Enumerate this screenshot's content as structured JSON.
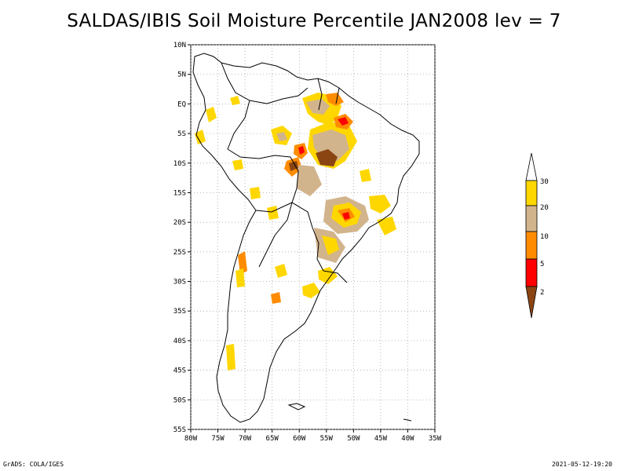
{
  "title": "SALDAS/IBIS Soil Moisture Percentile JAN2008 lev = 7",
  "map": {
    "region": "South America",
    "lat_labels": [
      "10N",
      "5N",
      "EQ",
      "5S",
      "10S",
      "15S",
      "20S",
      "25S",
      "30S",
      "35S",
      "40S",
      "45S",
      "50S",
      "55S"
    ],
    "lon_labels": [
      "80W",
      "75W",
      "70W",
      "65W",
      "60W",
      "55W",
      "50W",
      "45W",
      "40W",
      "35W"
    ],
    "lat_range": [
      10,
      -55
    ],
    "lon_range": [
      -80,
      -35
    ]
  },
  "colorbar": {
    "labels": [
      "30",
      "20",
      "10",
      "5",
      "2"
    ],
    "colors": {
      "above_30": "#ffffff",
      "p20_30": "#ffd700",
      "p10_20": "#d2b48c",
      "p5_10": "#ff8c00",
      "p2_5": "#ff0000",
      "below_2": "#8b4513"
    }
  },
  "footer": {
    "left": "GrADS: COLA/IGES",
    "right": "2021-05-12-19:20"
  }
}
